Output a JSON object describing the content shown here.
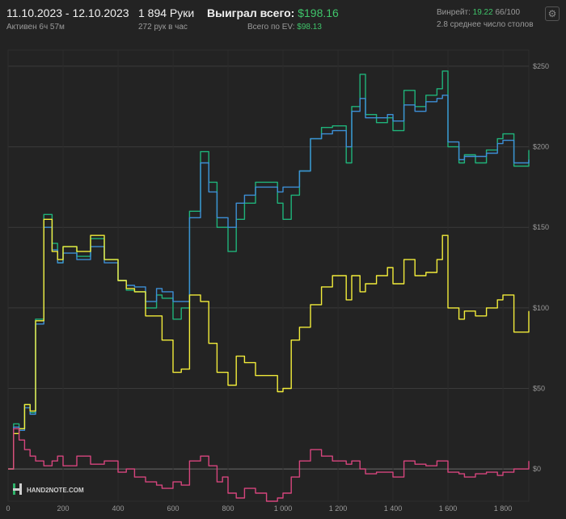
{
  "header": {
    "date_range": "11.10.2023 - 12.10.2023",
    "active": "Активен 6ч 57м",
    "hands": "1 894 Руки",
    "hands_per_hour": "272 рук в час",
    "won_label": "Выиграл всего:",
    "won_value": "$198.16",
    "ev_label": "Всего по EV:",
    "ev_value": "$98.13",
    "winrate_label": "Винрейт:",
    "winrate_value": "19.22",
    "winrate_rest": "66/100",
    "tables": "2.8 среднее число столов",
    "settings_icon": "gear-icon"
  },
  "logo": {
    "text": "HAND2NOTE.COM"
  },
  "colors": {
    "green": "#1fb37a",
    "blue": "#3d8fd6",
    "yellow": "#f2ec3a",
    "pink": "#d6457d",
    "win_text": "#3fc56a"
  },
  "chart_data": {
    "type": "line",
    "xlim": [
      0,
      1894
    ],
    "ylim": [
      -20,
      260
    ],
    "x_ticks": [
      0,
      200,
      400,
      600,
      800,
      1000,
      1200,
      1400,
      1600,
      1800
    ],
    "x_tick_labels": [
      "0",
      "200",
      "400",
      "600",
      "800",
      "1 000",
      "1 200",
      "1 400",
      "1 600",
      "1 800"
    ],
    "y_ticks": [
      0,
      50,
      100,
      150,
      200,
      250
    ],
    "y_tick_labels": [
      "$0",
      "$50",
      "$100",
      "$150",
      "$200",
      "$250"
    ],
    "grid": true,
    "series": [
      {
        "color": "#1fb37a",
        "x": [
          0,
          20,
          40,
          60,
          80,
          100,
          130,
          160,
          180,
          200,
          250,
          300,
          350,
          400,
          430,
          460,
          500,
          540,
          560,
          600,
          630,
          660,
          700,
          730,
          760,
          780,
          800,
          830,
          860,
          900,
          940,
          980,
          1000,
          1030,
          1060,
          1100,
          1140,
          1180,
          1230,
          1250,
          1280,
          1300,
          1340,
          1380,
          1400,
          1440,
          1480,
          1520,
          1560,
          1580,
          1600,
          1640,
          1660,
          1700,
          1740,
          1780,
          1800,
          1840,
          1894
        ],
        "y": [
          0,
          28,
          25,
          40,
          35,
          93,
          158,
          140,
          128,
          138,
          132,
          143,
          130,
          117,
          111,
          110,
          100,
          108,
          106,
          93,
          100,
          160,
          197,
          178,
          150,
          150,
          135,
          155,
          165,
          178,
          178,
          165,
          155,
          170,
          185,
          205,
          212,
          213,
          190,
          225,
          245,
          220,
          215,
          218,
          210,
          235,
          225,
          232,
          236,
          247,
          200,
          190,
          195,
          190,
          198,
          205,
          208,
          188,
          198
        ]
      },
      {
        "color": "#3d8fd6",
        "x": [
          0,
          20,
          40,
          60,
          80,
          100,
          130,
          160,
          180,
          200,
          250,
          300,
          350,
          400,
          430,
          460,
          500,
          540,
          560,
          600,
          630,
          660,
          700,
          730,
          760,
          780,
          800,
          830,
          860,
          900,
          940,
          980,
          1000,
          1030,
          1060,
          1100,
          1140,
          1180,
          1230,
          1250,
          1280,
          1300,
          1340,
          1380,
          1400,
          1440,
          1480,
          1520,
          1560,
          1580,
          1600,
          1640,
          1660,
          1700,
          1740,
          1780,
          1800,
          1840,
          1894
        ],
        "y": [
          0,
          26,
          24,
          38,
          34,
          90,
          150,
          136,
          128,
          134,
          130,
          138,
          128,
          117,
          114,
          113,
          104,
          112,
          110,
          104,
          104,
          156,
          190,
          172,
          156,
          156,
          150,
          165,
          170,
          175,
          175,
          172,
          175,
          175,
          185,
          205,
          208,
          210,
          200,
          222,
          230,
          218,
          218,
          220,
          216,
          226,
          222,
          228,
          230,
          232,
          203,
          192,
          194,
          194,
          196,
          202,
          204,
          190,
          192
        ]
      },
      {
        "color": "#f2ec3a",
        "x": [
          0,
          20,
          40,
          60,
          80,
          100,
          130,
          160,
          180,
          200,
          250,
          300,
          350,
          400,
          430,
          460,
          500,
          540,
          560,
          600,
          630,
          660,
          700,
          730,
          760,
          780,
          800,
          830,
          860,
          900,
          940,
          980,
          1000,
          1030,
          1060,
          1100,
          1140,
          1180,
          1230,
          1250,
          1280,
          1300,
          1340,
          1380,
          1400,
          1440,
          1480,
          1520,
          1560,
          1580,
          1600,
          1640,
          1660,
          1700,
          1740,
          1780,
          1800,
          1840,
          1894
        ],
        "y": [
          0,
          22,
          25,
          40,
          36,
          92,
          155,
          135,
          130,
          138,
          135,
          145,
          130,
          117,
          112,
          110,
          95,
          95,
          80,
          60,
          62,
          108,
          104,
          78,
          60,
          60,
          52,
          70,
          66,
          58,
          58,
          48,
          50,
          80,
          88,
          102,
          113,
          120,
          105,
          120,
          110,
          115,
          120,
          125,
          115,
          130,
          120,
          122,
          130,
          145,
          100,
          93,
          98,
          95,
          100,
          105,
          108,
          85,
          98
        ]
      },
      {
        "color": "#d6457d",
        "x": [
          0,
          20,
          40,
          60,
          80,
          100,
          130,
          160,
          180,
          200,
          250,
          300,
          350,
          400,
          430,
          460,
          500,
          540,
          560,
          600,
          630,
          660,
          700,
          730,
          760,
          780,
          800,
          830,
          860,
          900,
          940,
          980,
          1000,
          1030,
          1060,
          1100,
          1140,
          1180,
          1230,
          1250,
          1280,
          1300,
          1340,
          1380,
          1400,
          1440,
          1480,
          1520,
          1560,
          1580,
          1600,
          1640,
          1660,
          1700,
          1740,
          1780,
          1800,
          1840,
          1894
        ],
        "y": [
          0,
          25,
          18,
          12,
          8,
          5,
          2,
          5,
          8,
          2,
          8,
          3,
          5,
          -2,
          0,
          -5,
          -8,
          -10,
          -12,
          -8,
          -10,
          5,
          8,
          2,
          -8,
          -5,
          -15,
          -18,
          -12,
          -15,
          -20,
          -18,
          -15,
          -5,
          5,
          12,
          8,
          5,
          3,
          5,
          0,
          -3,
          -2,
          -2,
          -5,
          5,
          3,
          2,
          5,
          5,
          -2,
          -3,
          -5,
          -3,
          -2,
          -4,
          -2,
          0,
          5
        ]
      }
    ]
  }
}
